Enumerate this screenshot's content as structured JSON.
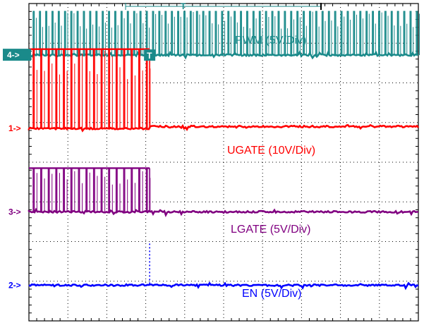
{
  "chart_data": {
    "type": "line",
    "title": "",
    "xlabel": "",
    "ylabel": "",
    "grid": true,
    "x_divisions": 10,
    "y_divisions": 8,
    "trigger_marker": "T",
    "trigger_position_div": 3.1,
    "series": [
      {
        "name": "PWM (5V/Div)",
        "channel": "4",
        "channel_label": "4->",
        "color": "#1a8a8a",
        "ground_div": 6.7,
        "switching_amplitude_div": 1.1,
        "switching_until_div": 10.0,
        "pulse_count": 62,
        "stop_level_div": 0.0
      },
      {
        "name": "UGATE (10V/Div)",
        "channel": "1",
        "channel_label": "1->",
        "color": "#ff0000",
        "ground_div": 4.85,
        "switching_amplitude_div": 2.0,
        "switching_until_div": 3.1,
        "pulse_count": 16,
        "stop_level_div": 0.05
      },
      {
        "name": "LGATE (5V/Div)",
        "channel": "3",
        "channel_label": "3->",
        "color": "#800080",
        "ground_div": 2.75,
        "switching_amplitude_div": 1.1,
        "switching_until_div": 3.1,
        "pulse_count": 16,
        "stop_level_div": 0.0
      },
      {
        "name": "EN (5V/Div)",
        "channel": "2",
        "channel_label": "2->",
        "color": "#0000ff",
        "ground_div": 0.9,
        "switching_amplitude_div": 0.0,
        "switching_until_div": 3.1,
        "pulse_count": 0,
        "high_level_div": 1.05,
        "stop_level_div": 0.0
      }
    ]
  }
}
